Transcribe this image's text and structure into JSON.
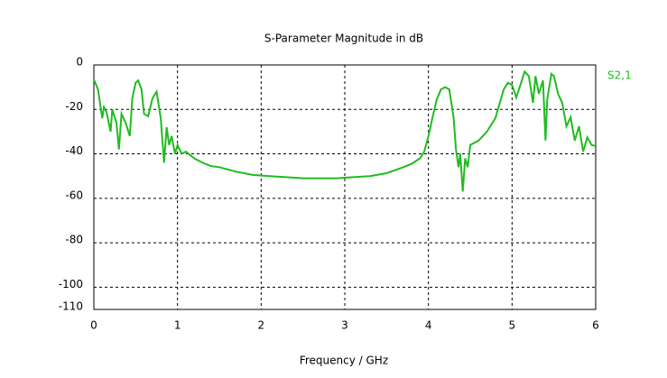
{
  "chart_data": {
    "type": "line",
    "title": "S-Parameter Magnitude in dB",
    "x_label": "Frequency / GHz",
    "x": [
      0,
      0.05,
      0.1,
      0.12,
      0.15,
      0.2,
      0.22,
      0.27,
      0.3,
      0.33,
      0.38,
      0.43,
      0.46,
      0.5,
      0.53,
      0.57,
      0.6,
      0.65,
      0.7,
      0.75,
      0.8,
      0.84,
      0.87,
      0.9,
      0.93,
      0.97,
      1.0,
      1.05,
      1.1,
      1.2,
      1.3,
      1.4,
      1.5,
      1.7,
      1.9,
      2.1,
      2.3,
      2.5,
      2.7,
      2.9,
      3.1,
      3.3,
      3.5,
      3.7,
      3.8,
      3.9,
      3.95,
      4.0,
      4.05,
      4.1,
      4.15,
      4.2,
      4.25,
      4.3,
      4.33,
      4.36,
      4.38,
      4.41,
      4.44,
      4.47,
      4.5,
      4.55,
      4.6,
      4.7,
      4.8,
      4.9,
      4.95,
      5.0,
      5.05,
      5.1,
      5.15,
      5.2,
      5.25,
      5.28,
      5.32,
      5.37,
      5.4,
      5.42,
      5.47,
      5.5,
      5.55,
      5.6,
      5.65,
      5.7,
      5.75,
      5.8,
      5.85,
      5.9,
      5.95,
      6.0
    ],
    "series": [
      {
        "name": "S2,1",
        "color": "#22bb22",
        "values": [
          -6.5,
          -11,
          -24,
          -19,
          -21,
          -30,
          -20,
          -26,
          -38,
          -22,
          -26,
          -32,
          -15,
          -8,
          -7,
          -11,
          -22,
          -23,
          -15,
          -12,
          -24,
          -44,
          -28,
          -36,
          -32,
          -40,
          -36,
          -40,
          -39,
          -42,
          -44,
          -45.5,
          -46,
          -48,
          -49.5,
          -50,
          -50.5,
          -51,
          -51,
          -51,
          -50.5,
          -50,
          -48.7,
          -46,
          -44.5,
          -42,
          -39,
          -32,
          -23.5,
          -15.5,
          -11,
          -10,
          -11,
          -23.5,
          -38,
          -46,
          -40,
          -57,
          -42,
          -46,
          -36,
          -35,
          -34,
          -30,
          -24,
          -11,
          -8,
          -9,
          -14.6,
          -9,
          -3,
          -5,
          -17,
          -5,
          -13,
          -7,
          -34,
          -15.5,
          -4,
          -5,
          -13,
          -17,
          -27.6,
          -23.5,
          -34,
          -27.6,
          -39,
          -32.5,
          -36,
          -36.5
        ]
      }
    ],
    "xlim": [
      0,
      6
    ],
    "xticks": [
      0,
      1,
      2,
      3,
      4,
      5,
      6
    ],
    "ylim": [
      -110,
      0
    ],
    "yticks": [
      0,
      -20,
      -40,
      -60,
      -80,
      -100,
      -110
    ],
    "grid": true
  }
}
